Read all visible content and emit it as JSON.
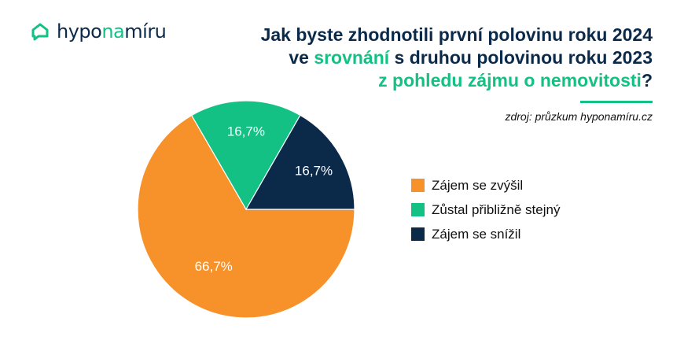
{
  "brand": {
    "part1": "hypo",
    "part2": "na",
    "part3": "míru",
    "icon": "house-chat-icon"
  },
  "title": {
    "line1": "Jak byste zhodnotili první polovinu roku 2024",
    "line2_pre": "ve ",
    "line2_hl": "srovnání",
    "line2_post": " s druhou polovinou roku 2023",
    "line3_hl": "z pohledu zájmu o nemovitosti",
    "line3_post": "?"
  },
  "source": "zdroj: průzkum hyponamíru.cz",
  "colors": {
    "orange": "#f7922a",
    "green": "#14c185",
    "navy": "#0b2a4a"
  },
  "chart_data": {
    "type": "pie",
    "slices": [
      {
        "label": "Zájem se zvýšil",
        "value": 66.7,
        "display": "66,7%",
        "color": "#f7922a"
      },
      {
        "label": "Zůstal přibližně stejný",
        "value": 16.7,
        "display": "16,7%",
        "color": "#14c185"
      },
      {
        "label": "Zájem se snížil",
        "value": 16.7,
        "display": "16,7%",
        "color": "#0b2a4a"
      }
    ],
    "legend": "right"
  }
}
